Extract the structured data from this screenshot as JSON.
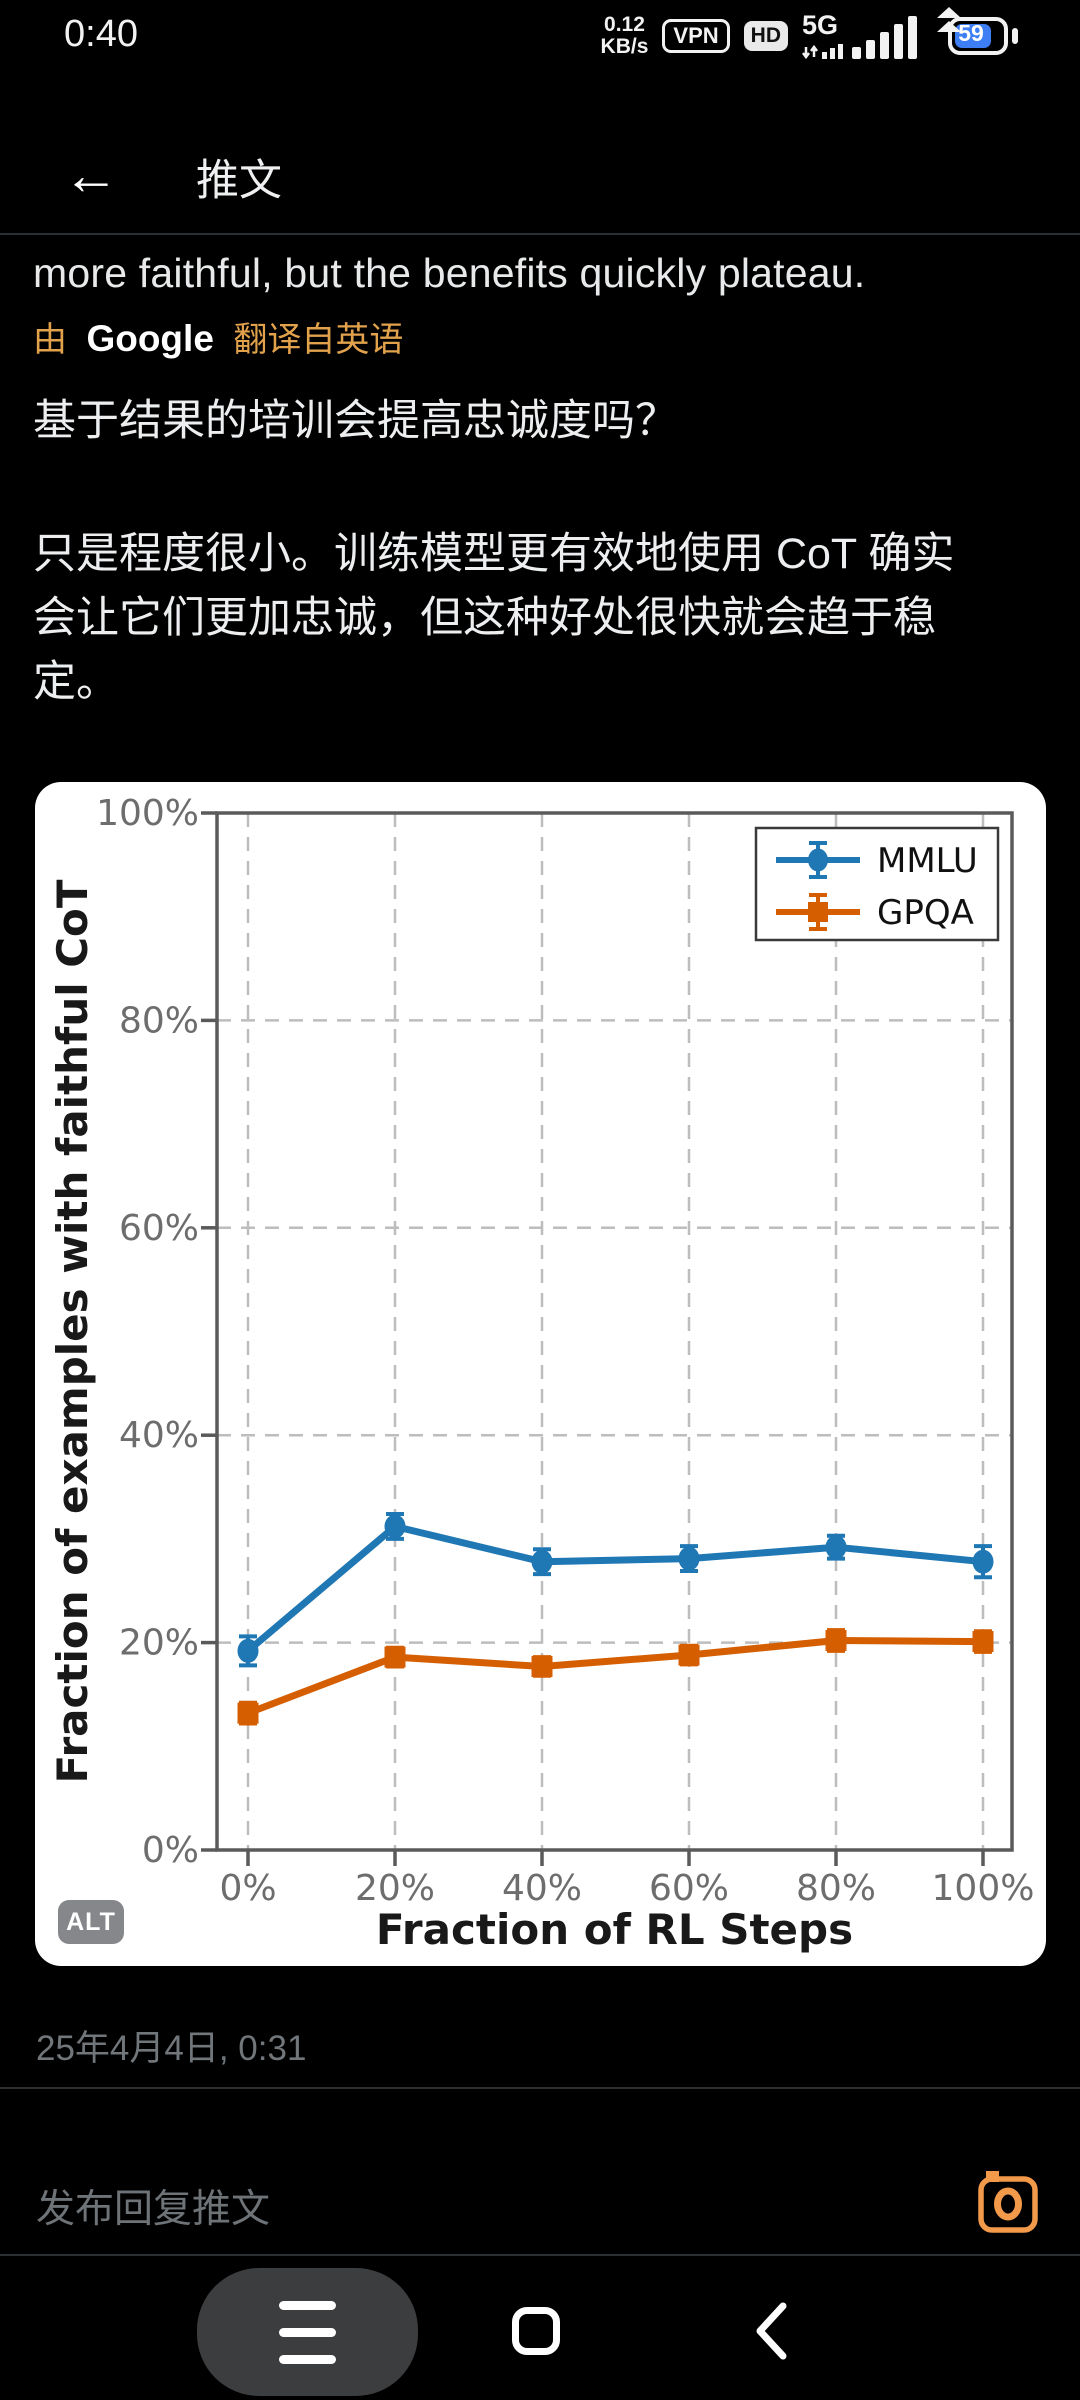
{
  "status_bar": {
    "time": "0:40",
    "net_speed_value": "0.12",
    "net_speed_unit": "KB/s",
    "vpn_label": "VPN",
    "hd_label": "HD",
    "network_type": "5G",
    "battery_percent": "59"
  },
  "header": {
    "back_glyph": "←",
    "title": "推文"
  },
  "tweet": {
    "text_en": "more faithful, but the benefits quickly plateau.",
    "translated_prefix": "由",
    "translator_name": "Google",
    "translated_suffix": "翻译自英语",
    "question_zh": "基于结果的培训会提高忠诚度吗？",
    "body_zh": "只是程度很小。训练模型更有效地使用 CoT 确实会让它们更加忠诚，但这种好处很快就会趋于稳定。",
    "alt_badge": "ALT",
    "timestamp": "25年4月4日, 0:31"
  },
  "chart_data": {
    "type": "line",
    "title": "",
    "xlabel": "Fraction of RL Steps",
    "ylabel": "Fraction of examples with faithful CoT",
    "categories": [
      "0%",
      "20%",
      "40%",
      "60%",
      "80%",
      "100%"
    ],
    "x_values": [
      0,
      20,
      40,
      60,
      80,
      100
    ],
    "y_ticks": [
      "0%",
      "20%",
      "40%",
      "60%",
      "80%",
      "100%"
    ],
    "y_tick_values": [
      0,
      20,
      40,
      60,
      80,
      100
    ],
    "ylim": [
      0,
      100
    ],
    "grid": "dashed",
    "legend_position": "upper right",
    "series": [
      {
        "name": "MMLU",
        "color": "#1f77b4",
        "marker": "circle",
        "values": [
          19.2,
          31.2,
          27.8,
          28.1,
          29.2,
          27.8
        ],
        "error": [
          1.4,
          1.2,
          1.2,
          1.2,
          1.1,
          1.5
        ]
      },
      {
        "name": "GPQA",
        "color": "#d55e00",
        "marker": "square",
        "values": [
          13.2,
          18.6,
          17.7,
          18.8,
          20.2,
          20.1
        ],
        "error": [
          1.0,
          0.9,
          0.9,
          0.9,
          1.0,
          1.0
        ]
      }
    ]
  },
  "reply": {
    "placeholder": "发布回复推文"
  },
  "colors": {
    "translate_orange": "#e2a24c",
    "camera_orange": "#f2994a",
    "battery_blue": "#3d7ef5",
    "series_blue": "#1f77b4",
    "series_orange": "#d55e00"
  }
}
